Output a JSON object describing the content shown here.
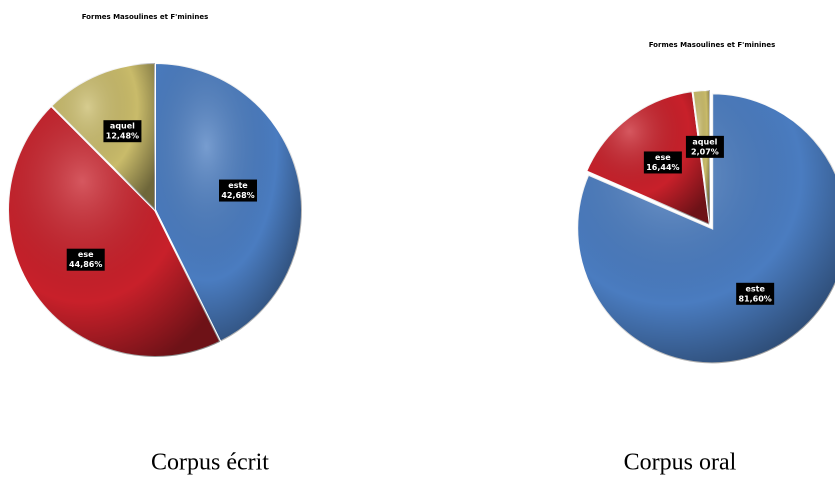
{
  "chart_data": [
    {
      "type": "pie",
      "title": "Formes Masoulines et F'minines",
      "caption": "Corpus écrit",
      "categories": [
        "este",
        "ese",
        "aquel"
      ],
      "values": [
        42.68,
        44.86,
        12.48
      ],
      "value_labels": [
        "42,68%",
        "44,86%",
        "12,48%"
      ],
      "colors": [
        "#4a7cc0",
        "#c8202a",
        "#c9bb6a"
      ]
    },
    {
      "type": "pie",
      "title": "Formes Masoulines et F'minines",
      "caption": "Corpus oral",
      "categories": [
        "este",
        "ese",
        "aquel"
      ],
      "values": [
        81.6,
        16.44,
        2.07
      ],
      "value_labels": [
        "81,60%",
        "16,44%",
        "2,07%"
      ],
      "colors": [
        "#4a7cc0",
        "#c8202a",
        "#c9bb6a"
      ]
    }
  ]
}
